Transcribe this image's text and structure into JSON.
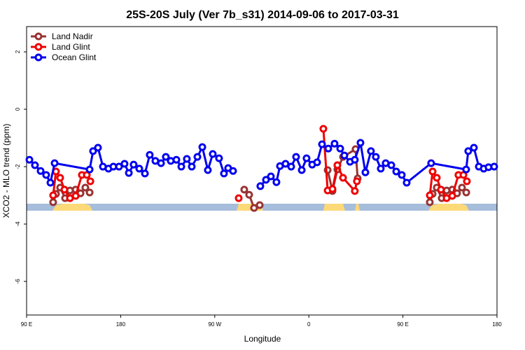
{
  "chart_data": {
    "type": "line",
    "title": "25S-20S July (Ver 7b_s31)   2014-09-06 to 2017-03-31",
    "xlabel": "Longitude",
    "ylabel": "XCO2 - MLO trend (ppm)",
    "xlim": [
      90,
      540
    ],
    "ylim": [
      2.88,
      -7.17
    ],
    "xticks": [
      {
        "value": 90,
        "label": "90 E"
      },
      180,
      {
        "value": 270,
        "label": "90 W"
      },
      {
        "value": 360,
        "label": "0"
      },
      {
        "value": 450,
        "label": "90 E"
      },
      {
        "value": 540,
        "label": "180"
      }
    ],
    "yticks": [
      2,
      0,
      -2,
      -4,
      -6
    ],
    "legend": "top-left",
    "series": [
      {
        "name": "Land Nadir",
        "color": "#993333",
        "x": [
          115.4,
          118.1,
          122.1,
          126.8,
          131.5,
          136.9,
          141.6,
          146.2,
          150.3,
          null,
          298.2,
          302.9,
          307.6,
          313.0,
          null,
          378.0,
          382.6,
          387.3,
          392.7,
          404.7,
          406.7,
          null,
          475.7,
          478.4,
          482.4,
          487.1,
          491.8,
          497.2,
          501.8,
          506.5,
          510.6
        ],
        "values": [
          -3.24,
          -2.95,
          -2.73,
          -3.1,
          -2.83,
          -2.8,
          -2.93,
          -2.73,
          -2.9,
          null,
          -2.8,
          -2.98,
          -3.44,
          -3.34,
          null,
          -2.12,
          -2.85,
          -2.1,
          -1.66,
          -1.39,
          -2.41,
          null,
          -3.24,
          -2.95,
          -2.73,
          -3.1,
          -2.83,
          -2.8,
          -2.93,
          -2.73,
          -2.9
        ]
      },
      {
        "name": "Land Glint",
        "color": "#ee0000",
        "x": [
          115.4,
          118.1,
          122.1,
          126.2,
          131.5,
          136.9,
          142.9,
          147.6,
          151.0,
          null,
          292.9,
          null,
          373.9,
          378.0,
          382.6,
          387.3,
          392.7,
          404.0,
          406.0,
          null,
          475.7,
          478.4,
          482.4,
          486.4,
          491.8,
          497.2,
          503.1,
          507.9,
          511.2
        ],
        "values": [
          -3.0,
          -2.17,
          -2.39,
          -2.8,
          -3.1,
          -3.02,
          -2.29,
          -2.29,
          -2.51,
          null,
          -3.1,
          null,
          -0.68,
          -2.83,
          -2.78,
          -1.95,
          -2.39,
          -2.85,
          -2.51,
          null,
          -3.0,
          -2.17,
          -2.39,
          -2.8,
          -3.1,
          -3.02,
          -2.29,
          -2.29,
          -2.51
        ]
      },
      {
        "name": "Ocean Glint",
        "color": "#0000ee",
        "x": [
          92.7,
          98.0,
          103.4,
          108.7,
          112.8,
          116.8,
          150.3,
          153.6,
          158.3,
          163.0,
          168.3,
          173.0,
          178.4,
          183.7,
          187.8,
          192.4,
          197.8,
          203.2,
          207.8,
          213.2,
          218.6,
          223.2,
          227.9,
          233.3,
          238.0,
          243.3,
          248.0,
          253.4,
          258.1,
          263.4,
          268.1,
          274.1,
          278.8,
          282.8,
          287.5,
          null,
          313.6,
          319.0,
          323.7,
          329.0,
          332.4,
          337.7,
          343.1,
          347.8,
          353.2,
          357.8,
          363.2,
          367.9,
          372.6,
          378.6,
          384.6,
          390.0,
          394.0,
          399.4,
          404.0,
          409.4,
          414.1,
          419.4,
          424.1,
          428.8,
          433.5,
          438.9,
          443.6,
          448.9,
          453.6,
          477.0,
          510.5,
          512.5,
          517.9,
          522.6,
          527.3,
          531.9,
          537.3
        ],
        "values": [
          -1.76,
          -1.95,
          -2.15,
          -2.29,
          -2.56,
          -1.88,
          -2.1,
          -1.46,
          -1.34,
          -2.0,
          -2.07,
          -2.0,
          -2.0,
          -1.9,
          -2.22,
          -1.93,
          -2.07,
          -2.24,
          -1.59,
          -1.8,
          -1.88,
          -1.66,
          -1.8,
          -1.76,
          -2.0,
          -1.73,
          -2.0,
          -1.66,
          -1.32,
          -2.12,
          -1.56,
          -1.71,
          -2.24,
          -2.05,
          -2.15,
          null,
          -2.68,
          -2.46,
          -2.34,
          -2.54,
          -1.98,
          -1.9,
          -2.0,
          -1.66,
          -2.12,
          -1.71,
          -1.93,
          -1.85,
          -1.22,
          -1.37,
          -1.2,
          -1.37,
          -1.61,
          -1.83,
          -1.76,
          -1.17,
          -2.2,
          -1.46,
          -1.66,
          -2.07,
          -1.88,
          -1.95,
          -2.17,
          -2.29,
          -2.56,
          -1.88,
          -2.1,
          -1.46,
          -1.34,
          -2.0,
          -2.07,
          -2.02,
          -2.0
        ]
      }
    ]
  }
}
